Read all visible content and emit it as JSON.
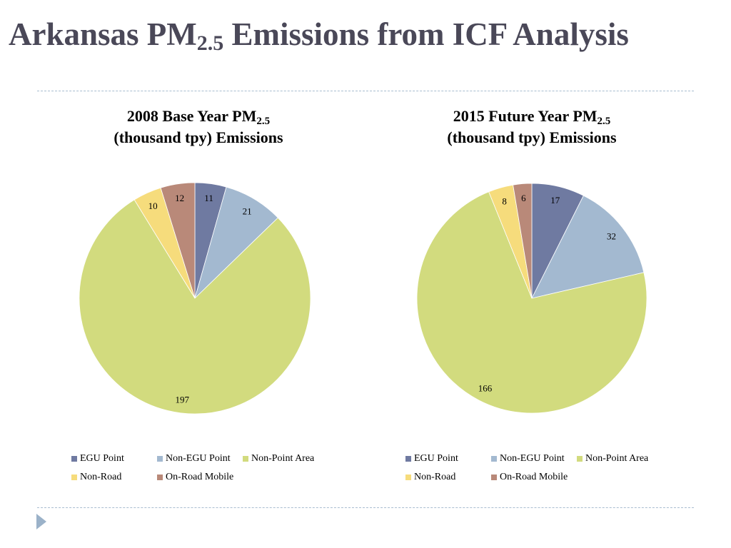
{
  "page": {
    "title_main": "Arkansas PM",
    "title_sub": "2.5",
    "title_rest": " Emissions from ICF Analysis"
  },
  "colors": {
    "title": "#4a4858",
    "rule": "#a9bdd0",
    "nav_arrow": "#9bb2c9"
  },
  "nav": {
    "icon": "triangle-right-icon"
  },
  "chart_data": [
    {
      "type": "pie",
      "title_line1_main": "2008 Base Year PM",
      "title_line1_sub": "2.5",
      "title_line2": "(thousand tpy) Emissions",
      "categories": [
        "EGU Point",
        "Non-EGU Point",
        "Non-Point Area",
        "Non-Road",
        "On-Road Mobile"
      ],
      "values": [
        11,
        21,
        197,
        10,
        12
      ],
      "value_labels": [
        "11",
        "21",
        "197",
        "10",
        "12"
      ],
      "colors": [
        "#6f7aa1",
        "#a3b9d0",
        "#d2db7e",
        "#f6dc7c",
        "#b98979"
      ],
      "start": "12 o'clock, clockwise",
      "legend_position": "bottom"
    },
    {
      "type": "pie",
      "title_line1_main": "2015 Future Year PM",
      "title_line1_sub": "2.5",
      "title_line2": "(thousand tpy) Emissions",
      "categories": [
        "EGU Point",
        "Non-EGU Point",
        "Non-Point Area",
        "Non-Road",
        "On-Road Mobile"
      ],
      "values": [
        17,
        32,
        166,
        8,
        6
      ],
      "value_labels": [
        "17",
        "32",
        "166",
        "8",
        "6"
      ],
      "colors": [
        "#6f7aa1",
        "#a3b9d0",
        "#d2db7e",
        "#f6dc7c",
        "#b98979"
      ],
      "start": "12 o'clock, clockwise",
      "legend_position": "bottom"
    }
  ]
}
